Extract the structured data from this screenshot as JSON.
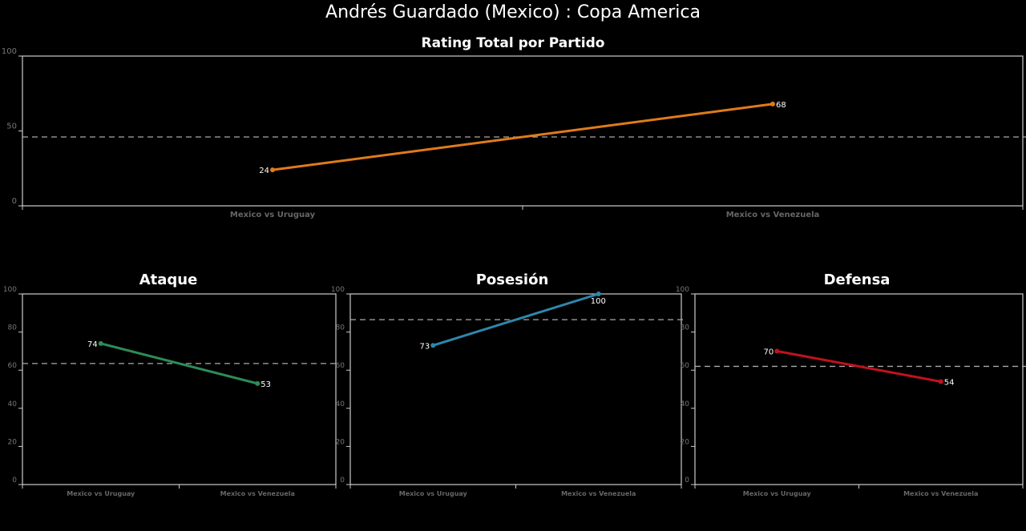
{
  "title": "Andrés Guardado (Mexico) :  Copa  America",
  "chart_data": [
    {
      "type": "line",
      "title": "Rating Total por Partido",
      "categories": [
        "Mexico vs Uruguay",
        "Mexico vs Venezuela"
      ],
      "values": [
        24,
        68
      ],
      "mean": 46,
      "ylim": [
        0,
        100
      ],
      "yticks": [
        0,
        50,
        100
      ],
      "color": "#e07b1a"
    },
    {
      "type": "line",
      "title": "Ataque",
      "categories": [
        "Mexico vs Uruguay",
        "Mexico vs Venezuela"
      ],
      "values": [
        74,
        53
      ],
      "mean": 63.5,
      "ylim": [
        0,
        100
      ],
      "yticks": [
        0,
        20,
        40,
        60,
        80,
        100
      ],
      "color": "#2e8b57"
    },
    {
      "type": "line",
      "title": "Posesión",
      "categories": [
        "Mexico vs Uruguay",
        "Mexico vs Venezuela"
      ],
      "values": [
        73,
        100
      ],
      "mean": 86.5,
      "ylim": [
        0,
        100
      ],
      "yticks": [
        0,
        20,
        40,
        60,
        80,
        100
      ],
      "color": "#2e86ab"
    },
    {
      "type": "line",
      "title": "Defensa",
      "categories": [
        "Mexico vs Uruguay",
        "Mexico vs Venezuela"
      ],
      "values": [
        70,
        54
      ],
      "mean": 62,
      "ylim": [
        0,
        100
      ],
      "yticks": [
        0,
        20,
        40,
        60,
        80,
        100
      ],
      "color": "#c0111f"
    }
  ]
}
